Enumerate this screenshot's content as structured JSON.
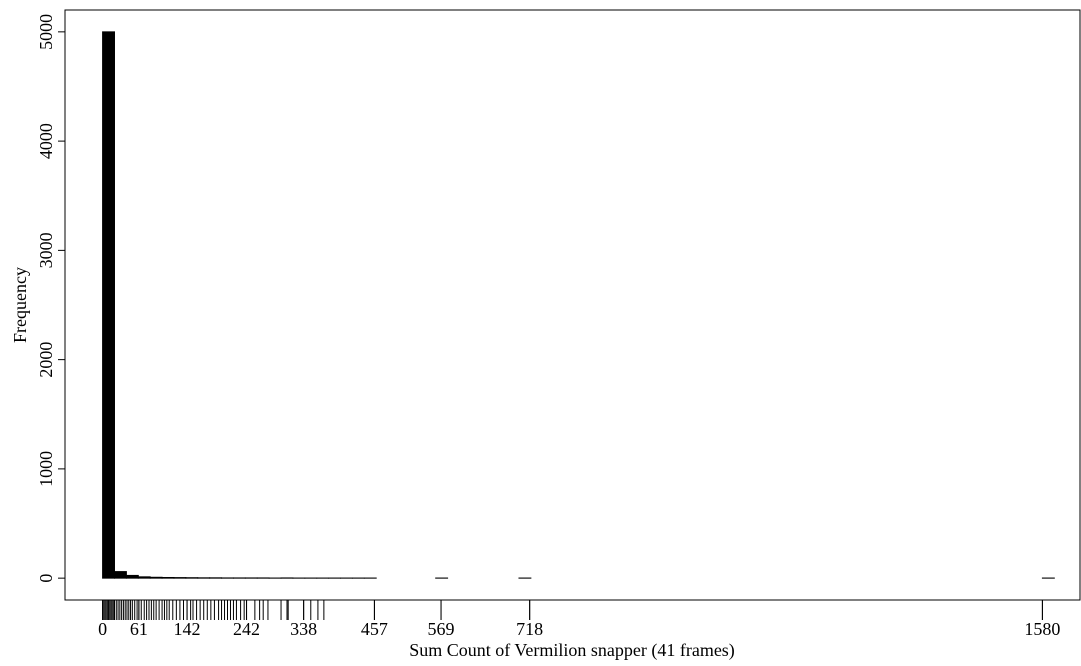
{
  "chart_data": {
    "type": "histogram",
    "x_label": "Sum Count of Vermilion snapper (41 frames)",
    "y_label": "Frequency",
    "bins": [
      0,
      20,
      40,
      60,
      80,
      100,
      120,
      140,
      160,
      180,
      200,
      220,
      240,
      260,
      280,
      300,
      320,
      340,
      360,
      380,
      400,
      420,
      440,
      460,
      480,
      500,
      520,
      540,
      560,
      580,
      600,
      620,
      640,
      660,
      680,
      700,
      720,
      740,
      760,
      780,
      800,
      820,
      840,
      860,
      880,
      900,
      920,
      940,
      960,
      980,
      1000,
      1020,
      1040,
      1060,
      1080,
      1100,
      1120,
      1140,
      1160,
      1180,
      1200,
      1220,
      1240,
      1260,
      1280,
      1300,
      1320,
      1340,
      1360,
      1380,
      1400,
      1420,
      1440,
      1460,
      1480,
      1500,
      1520,
      1540,
      1560,
      1580,
      1600
    ],
    "values": [
      5000,
      60,
      25,
      12,
      8,
      6,
      5,
      4,
      3,
      3,
      2,
      2,
      2,
      2,
      1,
      2,
      1,
      1,
      1,
      1,
      1,
      1,
      1,
      0,
      0,
      0,
      0,
      0,
      1,
      0,
      0,
      0,
      0,
      0,
      0,
      1,
      0,
      0,
      0,
      0,
      0,
      0,
      0,
      0,
      0,
      0,
      0,
      0,
      0,
      0,
      0,
      0,
      0,
      0,
      0,
      0,
      0,
      0,
      0,
      0,
      0,
      0,
      0,
      0,
      0,
      0,
      0,
      0,
      0,
      0,
      0,
      0,
      0,
      0,
      0,
      0,
      0,
      0,
      0,
      1
    ],
    "color": "#000000",
    "rug": [
      0,
      2,
      4,
      6,
      8,
      10,
      12,
      14,
      16,
      18,
      20,
      23,
      26,
      29,
      32,
      35,
      38,
      41,
      44,
      47,
      50,
      54,
      58,
      61,
      65,
      70,
      74,
      78,
      82,
      86,
      90,
      95,
      100,
      104,
      108,
      112,
      118,
      124,
      130,
      136,
      142,
      148,
      152,
      158,
      164,
      170,
      176,
      182,
      188,
      195,
      200,
      205,
      210,
      215,
      220,
      225,
      232,
      238,
      242,
      256,
      264,
      270,
      278,
      300,
      310,
      312,
      338,
      350,
      362,
      372,
      457,
      569,
      718,
      1580
    ],
    "xlim": [
      -63.2,
      1643.2
    ],
    "xticks": [
      0,
      61,
      142,
      242,
      338,
      457,
      569,
      718,
      1580
    ],
    "ylim": [
      -200,
      5200
    ],
    "yticks": [
      0,
      1000,
      2000,
      3000,
      4000,
      5000
    ]
  }
}
